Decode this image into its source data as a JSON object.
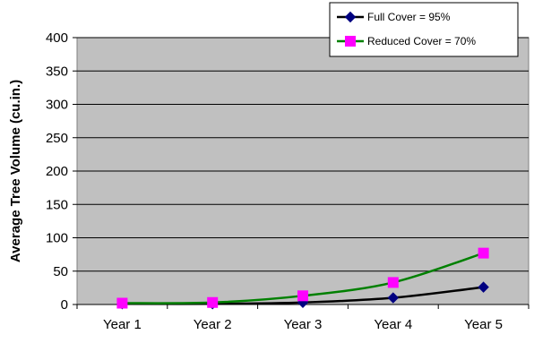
{
  "chart_data": {
    "type": "line",
    "title": "",
    "xlabel": "",
    "ylabel": "Average Tree Volume (cu.in.)",
    "categories": [
      "Year 1",
      "Year 2",
      "Year 3",
      "Year 4",
      "Year 5"
    ],
    "ylim": [
      0,
      400
    ],
    "yticks": [
      0,
      50,
      100,
      150,
      200,
      250,
      300,
      350,
      400
    ],
    "grid": "horizontal",
    "plot_background": "#c0c0c0",
    "legend_position": "top-right",
    "smooth": true,
    "series": [
      {
        "name": "Full Cover = 95%",
        "color": "#000000",
        "marker_color": "#000080",
        "marker": "diamond",
        "values": [
          1,
          1,
          3,
          10,
          26
        ]
      },
      {
        "name": "Reduced Cover = 70%",
        "color": "#008000",
        "marker_color": "#ff00ff",
        "marker": "square",
        "values": [
          2,
          3,
          13,
          33,
          77
        ]
      }
    ]
  }
}
